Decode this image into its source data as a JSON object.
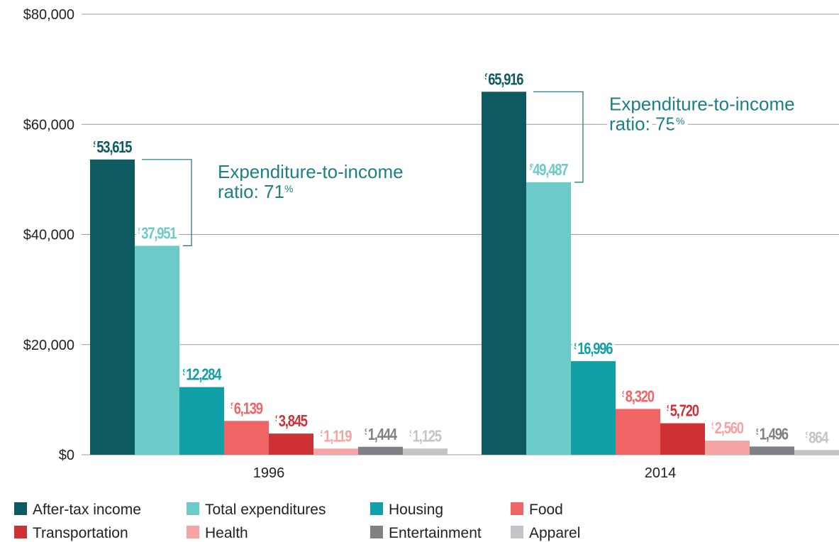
{
  "chart_data": {
    "type": "bar",
    "categories": [
      "1996",
      "2014"
    ],
    "series": [
      {
        "name": "After-tax income",
        "color": "#0d5b61",
        "values": [
          53615,
          65916
        ],
        "value_labels": [
          "$53,615",
          "$65,916"
        ]
      },
      {
        "name": "Total expenditures",
        "color": "#6ccac9",
        "values": [
          37951,
          49487
        ],
        "value_labels": [
          "$37,951",
          "$49,487"
        ]
      },
      {
        "name": "Housing",
        "color": "#12a0a8",
        "values": [
          12284,
          16996
        ],
        "value_labels": [
          "$12,284",
          "$16,996"
        ]
      },
      {
        "name": "Food",
        "color": "#ef6464",
        "values": [
          6139,
          8320
        ],
        "value_labels": [
          "$6,139",
          "$8,320"
        ]
      },
      {
        "name": "Transportation",
        "color": "#cf3236",
        "values": [
          3845,
          5720
        ],
        "value_labels": [
          "$3,845",
          "$5,720"
        ]
      },
      {
        "name": "Health",
        "color": "#f5a3a3",
        "values": [
          1119,
          2560
        ],
        "value_labels": [
          "$1,119",
          "$2,560"
        ]
      },
      {
        "name": "Entertainment",
        "color": "#7f8184",
        "values": [
          1444,
          1496
        ],
        "value_labels": [
          "$1,444",
          "$1,496"
        ]
      },
      {
        "name": "Apparel",
        "color": "#c3c4c7",
        "values": [
          1125,
          864
        ],
        "value_labels": [
          "$1,125",
          "$864"
        ]
      }
    ],
    "annotations": [
      {
        "lines": [
          "Expenditure-to-income",
          "ratio: 71%"
        ]
      },
      {
        "lines": [
          "Expenditure-to-income",
          "ratio: 75%"
        ]
      }
    ],
    "ylim": [
      0,
      80000
    ],
    "yticks": [
      {
        "value": 0,
        "label": "$0"
      },
      {
        "value": 20000,
        "label": "$20,000"
      },
      {
        "value": 40000,
        "label": "$40,000"
      },
      {
        "value": 60000,
        "label": "$60,000"
      },
      {
        "value": 80000,
        "label": "$80,000"
      }
    ],
    "grid": true
  }
}
